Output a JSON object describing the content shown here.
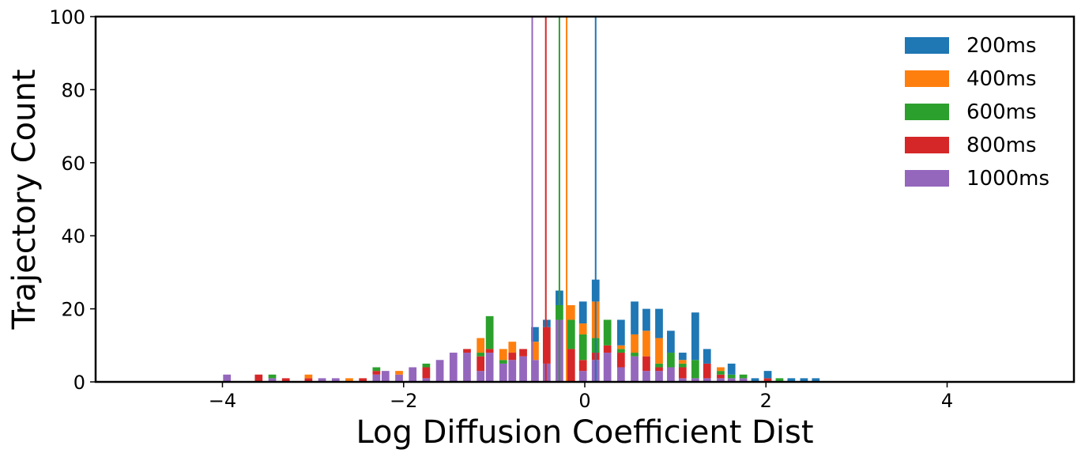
{
  "chart_data": {
    "type": "bar",
    "stacked": true,
    "xlabel": "Log Diffusion Coefficient Dist",
    "ylabel": "Trajectory Count",
    "xlim": [
      -5.4,
      5.4
    ],
    "ylim": [
      0,
      100
    ],
    "xticks": [
      -4,
      -2,
      0,
      2,
      4
    ],
    "xtick_labels": [
      "−4",
      "−2",
      "0",
      "2",
      "4"
    ],
    "yticks": [
      0,
      20,
      40,
      60,
      80,
      100
    ],
    "ytick_labels": [
      "0",
      "20",
      "40",
      "60",
      "80",
      "100"
    ],
    "grid": false,
    "legend": "top-right",
    "bin_width": 0.1,
    "x": [
      -3.95,
      -3.6,
      -3.45,
      -3.3,
      -3.05,
      -2.9,
      -2.75,
      -2.6,
      -2.45,
      -2.3,
      -2.2,
      -2.05,
      -1.9,
      -1.75,
      -1.6,
      -1.45,
      -1.3,
      -1.15,
      -1.05,
      -0.9,
      -0.8,
      -0.68,
      -0.55,
      -0.42,
      -0.28,
      -0.15,
      -0.02,
      0.12,
      0.25,
      0.4,
      0.55,
      0.68,
      0.82,
      0.95,
      1.08,
      1.22,
      1.35,
      1.5,
      1.62,
      1.75,
      1.88,
      2.02,
      2.15,
      2.28,
      2.42,
      2.55
    ],
    "series": [
      {
        "name": "200ms",
        "color": "#1f77b4",
        "values": [
          0,
          0,
          0,
          0,
          0,
          0,
          0,
          0,
          0,
          0,
          0,
          0,
          0,
          0,
          0,
          0,
          0,
          0,
          0,
          0,
          0,
          0,
          4,
          2,
          4,
          0,
          6,
          6,
          0,
          7,
          9,
          6,
          8,
          6,
          2,
          13,
          4,
          0,
          3,
          0,
          1,
          2,
          0,
          1,
          1,
          1
        ]
      },
      {
        "name": "400ms",
        "color": "#ff7f0e",
        "values": [
          0,
          0,
          0,
          0,
          1,
          0,
          0,
          1,
          0,
          0,
          0,
          1,
          0,
          0,
          0,
          0,
          0,
          4,
          0,
          3,
          3,
          0,
          5,
          0,
          0,
          4,
          3,
          10,
          0,
          1,
          5,
          7,
          7,
          0,
          1,
          0,
          0,
          1,
          0,
          0,
          0,
          0,
          0,
          0,
          0,
          0
        ]
      },
      {
        "name": "600ms",
        "color": "#2ca02c",
        "values": [
          0,
          0,
          1,
          0,
          0,
          0,
          0,
          0,
          0,
          1,
          0,
          0,
          0,
          1,
          0,
          0,
          0,
          1,
          9,
          1,
          0,
          0,
          0,
          0,
          4,
          8,
          7,
          4,
          7,
          1,
          1,
          0,
          1,
          4,
          1,
          5,
          0,
          1,
          1,
          1,
          0,
          0,
          1,
          0,
          0,
          0
        ]
      },
      {
        "name": "800ms",
        "color": "#d62728",
        "values": [
          0,
          2,
          0,
          1,
          1,
          0,
          0,
          0,
          1,
          1,
          0,
          0,
          0,
          3,
          0,
          0,
          1,
          4,
          1,
          0,
          2,
          2,
          0,
          10,
          0,
          9,
          3,
          2,
          2,
          4,
          0,
          4,
          1,
          0,
          3,
          0,
          4,
          1,
          0,
          0,
          0,
          1,
          0,
          0,
          0,
          0
        ]
      },
      {
        "name": "1000ms",
        "color": "#9467bd",
        "values": [
          2,
          0,
          1,
          0,
          0,
          1,
          1,
          0,
          0,
          2,
          3,
          2,
          4,
          1,
          6,
          8,
          8,
          3,
          8,
          5,
          6,
          7,
          6,
          5,
          17,
          0,
          3,
          6,
          8,
          4,
          7,
          3,
          3,
          4,
          1,
          1,
          1,
          1,
          1,
          1,
          0,
          0,
          0,
          0,
          0,
          0
        ]
      }
    ],
    "vlines": [
      {
        "x": 0.12,
        "color": "#1f77b4"
      },
      {
        "x": -0.2,
        "color": "#ff7f0e"
      },
      {
        "x": -0.28,
        "color": "#2ca02c"
      },
      {
        "x": -0.43,
        "color": "#d62728"
      },
      {
        "x": -0.58,
        "color": "#9467bd"
      }
    ]
  }
}
